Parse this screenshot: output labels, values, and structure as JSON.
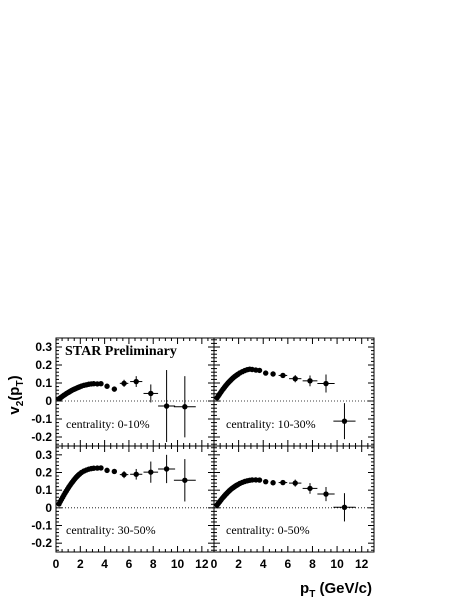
{
  "figure": {
    "annotation": "STAR Preliminary",
    "ylabel": {
      "main": "v",
      "sub1": "2",
      "paren_open": "(p",
      "sub2": "T",
      "paren_close": ")"
    },
    "xlabel": {
      "main": "p",
      "sub": "T",
      "rest": " (GeV/c)"
    }
  },
  "chart_data": [
    {
      "type": "scatter",
      "panel": "top-left",
      "annotation": "centrality: 0-10%",
      "xlim": [
        0,
        13
      ],
      "ylim": [
        -0.25,
        0.35
      ],
      "xticks": [],
      "yticks": [
        "0.3",
        "0.2",
        "0.1",
        "0",
        "-0.1",
        "-0.2"
      ],
      "points": [
        {
          "x": 0.25,
          "y": 0.012
        },
        {
          "x": 0.35,
          "y": 0.017
        },
        {
          "x": 0.45,
          "y": 0.022
        },
        {
          "x": 0.55,
          "y": 0.027
        },
        {
          "x": 0.65,
          "y": 0.032
        },
        {
          "x": 0.75,
          "y": 0.036
        },
        {
          "x": 0.85,
          "y": 0.041
        },
        {
          "x": 0.95,
          "y": 0.045
        },
        {
          "x": 1.05,
          "y": 0.049
        },
        {
          "x": 1.15,
          "y": 0.053
        },
        {
          "x": 1.25,
          "y": 0.057
        },
        {
          "x": 1.35,
          "y": 0.061
        },
        {
          "x": 1.45,
          "y": 0.064
        },
        {
          "x": 1.55,
          "y": 0.067
        },
        {
          "x": 1.65,
          "y": 0.07
        },
        {
          "x": 1.75,
          "y": 0.073
        },
        {
          "x": 1.85,
          "y": 0.076
        },
        {
          "x": 1.95,
          "y": 0.079
        },
        {
          "x": 2.1,
          "y": 0.083
        },
        {
          "x": 2.3,
          "y": 0.087
        },
        {
          "x": 2.5,
          "y": 0.09
        },
        {
          "x": 2.7,
          "y": 0.093
        },
        {
          "x": 2.9,
          "y": 0.095
        },
        {
          "x": 3.1,
          "y": 0.096
        },
        {
          "x": 3.4,
          "y": 0.095
        },
        {
          "x": 3.7,
          "y": 0.096
        },
        {
          "x": 4.2,
          "y": 0.082,
          "ey": 0.01
        },
        {
          "x": 4.8,
          "y": 0.066,
          "ey": 0.012
        },
        {
          "x": 5.6,
          "y": 0.098,
          "ex": 0.35,
          "ey": 0.02
        },
        {
          "x": 6.6,
          "y": 0.108,
          "ex": 0.5,
          "ey": 0.03
        },
        {
          "x": 7.8,
          "y": 0.042,
          "ex": 0.6,
          "ey": 0.05
        },
        {
          "x": 9.1,
          "y": -0.028,
          "ex": 0.7,
          "ey": 0.2
        },
        {
          "x": 10.6,
          "y": -0.032,
          "ex": 0.9,
          "ey": 0.17
        }
      ]
    },
    {
      "type": "scatter",
      "panel": "top-right",
      "annotation": "centrality: 10-30%",
      "xlim": [
        0,
        13
      ],
      "ylim": [
        -0.25,
        0.35
      ],
      "xticks": [],
      "yticks": [],
      "points": [
        {
          "x": 0.25,
          "y": 0.018
        },
        {
          "x": 0.35,
          "y": 0.028
        },
        {
          "x": 0.45,
          "y": 0.038
        },
        {
          "x": 0.55,
          "y": 0.048
        },
        {
          "x": 0.65,
          "y": 0.058
        },
        {
          "x": 0.75,
          "y": 0.067
        },
        {
          "x": 0.85,
          "y": 0.076
        },
        {
          "x": 0.95,
          "y": 0.085
        },
        {
          "x": 1.05,
          "y": 0.093
        },
        {
          "x": 1.15,
          "y": 0.101
        },
        {
          "x": 1.25,
          "y": 0.108
        },
        {
          "x": 1.35,
          "y": 0.115
        },
        {
          "x": 1.45,
          "y": 0.122
        },
        {
          "x": 1.55,
          "y": 0.128
        },
        {
          "x": 1.65,
          "y": 0.134
        },
        {
          "x": 1.75,
          "y": 0.139
        },
        {
          "x": 1.85,
          "y": 0.144
        },
        {
          "x": 1.95,
          "y": 0.149
        },
        {
          "x": 2.1,
          "y": 0.156
        },
        {
          "x": 2.3,
          "y": 0.163
        },
        {
          "x": 2.5,
          "y": 0.169
        },
        {
          "x": 2.7,
          "y": 0.174
        },
        {
          "x": 2.9,
          "y": 0.177
        },
        {
          "x": 3.1,
          "y": 0.175
        },
        {
          "x": 3.4,
          "y": 0.172
        },
        {
          "x": 3.7,
          "y": 0.17
        },
        {
          "x": 4.2,
          "y": 0.155,
          "ey": 0.008
        },
        {
          "x": 4.8,
          "y": 0.15,
          "ey": 0.01
        },
        {
          "x": 5.6,
          "y": 0.142,
          "ex": 0.35,
          "ey": 0.012
        },
        {
          "x": 6.6,
          "y": 0.124,
          "ex": 0.5,
          "ey": 0.02
        },
        {
          "x": 7.8,
          "y": 0.112,
          "ex": 0.6,
          "ey": 0.03
        },
        {
          "x": 9.1,
          "y": 0.097,
          "ex": 0.7,
          "ey": 0.05
        },
        {
          "x": 10.6,
          "y": -0.112,
          "ex": 0.9,
          "ey": 0.1
        }
      ]
    },
    {
      "type": "scatter",
      "panel": "bottom-left",
      "annotation": "centrality: 30-50%",
      "xlim": [
        0,
        13
      ],
      "ylim": [
        -0.25,
        0.35
      ],
      "xticks": [
        "0",
        "2",
        "4",
        "6",
        "8",
        "10",
        "12"
      ],
      "yticks": [
        "0.3",
        "0.2",
        "0.1",
        "0",
        "-0.1",
        "-0.2"
      ],
      "points": [
        {
          "x": 0.25,
          "y": 0.022
        },
        {
          "x": 0.35,
          "y": 0.035
        },
        {
          "x": 0.45,
          "y": 0.048
        },
        {
          "x": 0.55,
          "y": 0.06
        },
        {
          "x": 0.65,
          "y": 0.072
        },
        {
          "x": 0.75,
          "y": 0.084
        },
        {
          "x": 0.85,
          "y": 0.095
        },
        {
          "x": 0.95,
          "y": 0.106
        },
        {
          "x": 1.05,
          "y": 0.117
        },
        {
          "x": 1.15,
          "y": 0.127
        },
        {
          "x": 1.25,
          "y": 0.137
        },
        {
          "x": 1.35,
          "y": 0.146
        },
        {
          "x": 1.45,
          "y": 0.155
        },
        {
          "x": 1.55,
          "y": 0.164
        },
        {
          "x": 1.65,
          "y": 0.172
        },
        {
          "x": 1.75,
          "y": 0.179
        },
        {
          "x": 1.85,
          "y": 0.186
        },
        {
          "x": 1.95,
          "y": 0.192
        },
        {
          "x": 2.1,
          "y": 0.2
        },
        {
          "x": 2.3,
          "y": 0.208
        },
        {
          "x": 2.5,
          "y": 0.214
        },
        {
          "x": 2.7,
          "y": 0.219
        },
        {
          "x": 2.9,
          "y": 0.222
        },
        {
          "x": 3.1,
          "y": 0.224
        },
        {
          "x": 3.4,
          "y": 0.225
        },
        {
          "x": 3.7,
          "y": 0.226
        },
        {
          "x": 4.2,
          "y": 0.212,
          "ey": 0.01
        },
        {
          "x": 4.8,
          "y": 0.206,
          "ey": 0.012
        },
        {
          "x": 5.6,
          "y": 0.188,
          "ex": 0.35,
          "ey": 0.02
        },
        {
          "x": 6.6,
          "y": 0.19,
          "ex": 0.5,
          "ey": 0.03
        },
        {
          "x": 7.8,
          "y": 0.202,
          "ex": 0.6,
          "ey": 0.06
        },
        {
          "x": 9.1,
          "y": 0.22,
          "ex": 0.7,
          "ey": 0.08
        },
        {
          "x": 10.6,
          "y": 0.156,
          "ex": 0.9,
          "ey": 0.12
        }
      ]
    },
    {
      "type": "scatter",
      "panel": "bottom-right",
      "annotation": "centrality: 0-50%",
      "xlim": [
        0,
        13
      ],
      "ylim": [
        -0.25,
        0.35
      ],
      "xticks": [
        "0",
        "2",
        "4",
        "6",
        "8",
        "10",
        "12"
      ],
      "yticks": [],
      "points": [
        {
          "x": 0.25,
          "y": 0.016
        },
        {
          "x": 0.35,
          "y": 0.025
        },
        {
          "x": 0.45,
          "y": 0.034
        },
        {
          "x": 0.55,
          "y": 0.043
        },
        {
          "x": 0.65,
          "y": 0.052
        },
        {
          "x": 0.75,
          "y": 0.06
        },
        {
          "x": 0.85,
          "y": 0.068
        },
        {
          "x": 0.95,
          "y": 0.076
        },
        {
          "x": 1.05,
          "y": 0.083
        },
        {
          "x": 1.15,
          "y": 0.09
        },
        {
          "x": 1.25,
          "y": 0.097
        },
        {
          "x": 1.35,
          "y": 0.103
        },
        {
          "x": 1.45,
          "y": 0.109
        },
        {
          "x": 1.55,
          "y": 0.114
        },
        {
          "x": 1.65,
          "y": 0.119
        },
        {
          "x": 1.75,
          "y": 0.124
        },
        {
          "x": 1.85,
          "y": 0.128
        },
        {
          "x": 1.95,
          "y": 0.132
        },
        {
          "x": 2.1,
          "y": 0.138
        },
        {
          "x": 2.3,
          "y": 0.144
        },
        {
          "x": 2.5,
          "y": 0.149
        },
        {
          "x": 2.7,
          "y": 0.153
        },
        {
          "x": 2.9,
          "y": 0.156
        },
        {
          "x": 3.1,
          "y": 0.158
        },
        {
          "x": 3.4,
          "y": 0.158
        },
        {
          "x": 3.7,
          "y": 0.157
        },
        {
          "x": 4.2,
          "y": 0.148,
          "ey": 0.008
        },
        {
          "x": 4.8,
          "y": 0.142,
          "ey": 0.01
        },
        {
          "x": 5.6,
          "y": 0.143,
          "ex": 0.35,
          "ey": 0.012
        },
        {
          "x": 6.6,
          "y": 0.14,
          "ex": 0.5,
          "ey": 0.02
        },
        {
          "x": 7.8,
          "y": 0.11,
          "ex": 0.6,
          "ey": 0.03
        },
        {
          "x": 9.1,
          "y": 0.078,
          "ex": 0.7,
          "ey": 0.04
        },
        {
          "x": 10.6,
          "y": 0.003,
          "ex": 0.9,
          "ey": 0.08
        }
      ]
    }
  ]
}
